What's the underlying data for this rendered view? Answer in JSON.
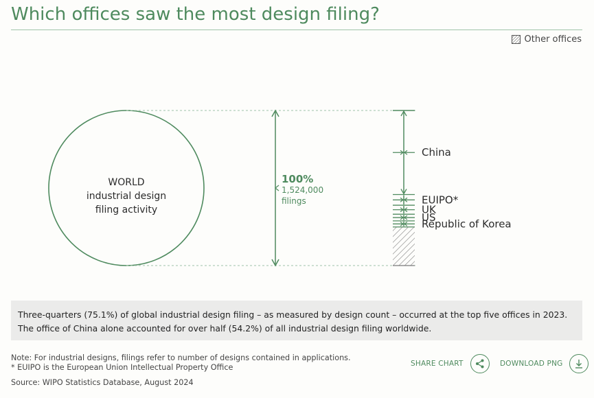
{
  "header": {
    "title": "Which offices saw the most design filing?"
  },
  "legend": {
    "other_label": "Other offices"
  },
  "colors": {
    "accent": "#4e8a5e",
    "text": "#2b2b2b",
    "panel": "#ebebea"
  },
  "chart_data": {
    "type": "bar",
    "world_label_lines": [
      "WORLD",
      "industrial design",
      "filing activity"
    ],
    "total": {
      "percent_label": "100%",
      "count_label": "1,524,000",
      "unit_label": "filings",
      "value": 1524000
    },
    "categories": [
      "China",
      "EUIPO*",
      "UK",
      "US",
      "Republic of Korea",
      "Other offices"
    ],
    "shares_percent": [
      54.2,
      6.9,
      5.8,
      4.3,
      3.9,
      24.9
    ],
    "top_five_share_percent": 75.1,
    "year": 2023
  },
  "summary": {
    "line1": "Three-quarters (75.1%) of global industrial design filing – as measured by design count – occurred at the top five offices in 2023.",
    "line2": "The office of China alone accounted for over half (54.2%) of all industrial design filing worldwide."
  },
  "notes": {
    "note1": "Note: For industrial designs, filings refer to number of designs contained in applications.",
    "note2": "* EUIPO is the European Union Intellectual Property Office",
    "source": "Source: WIPO Statistics Database, August 2024"
  },
  "actions": {
    "share_label": "SHARE CHART",
    "download_label": "DOWNLOAD PNG"
  }
}
